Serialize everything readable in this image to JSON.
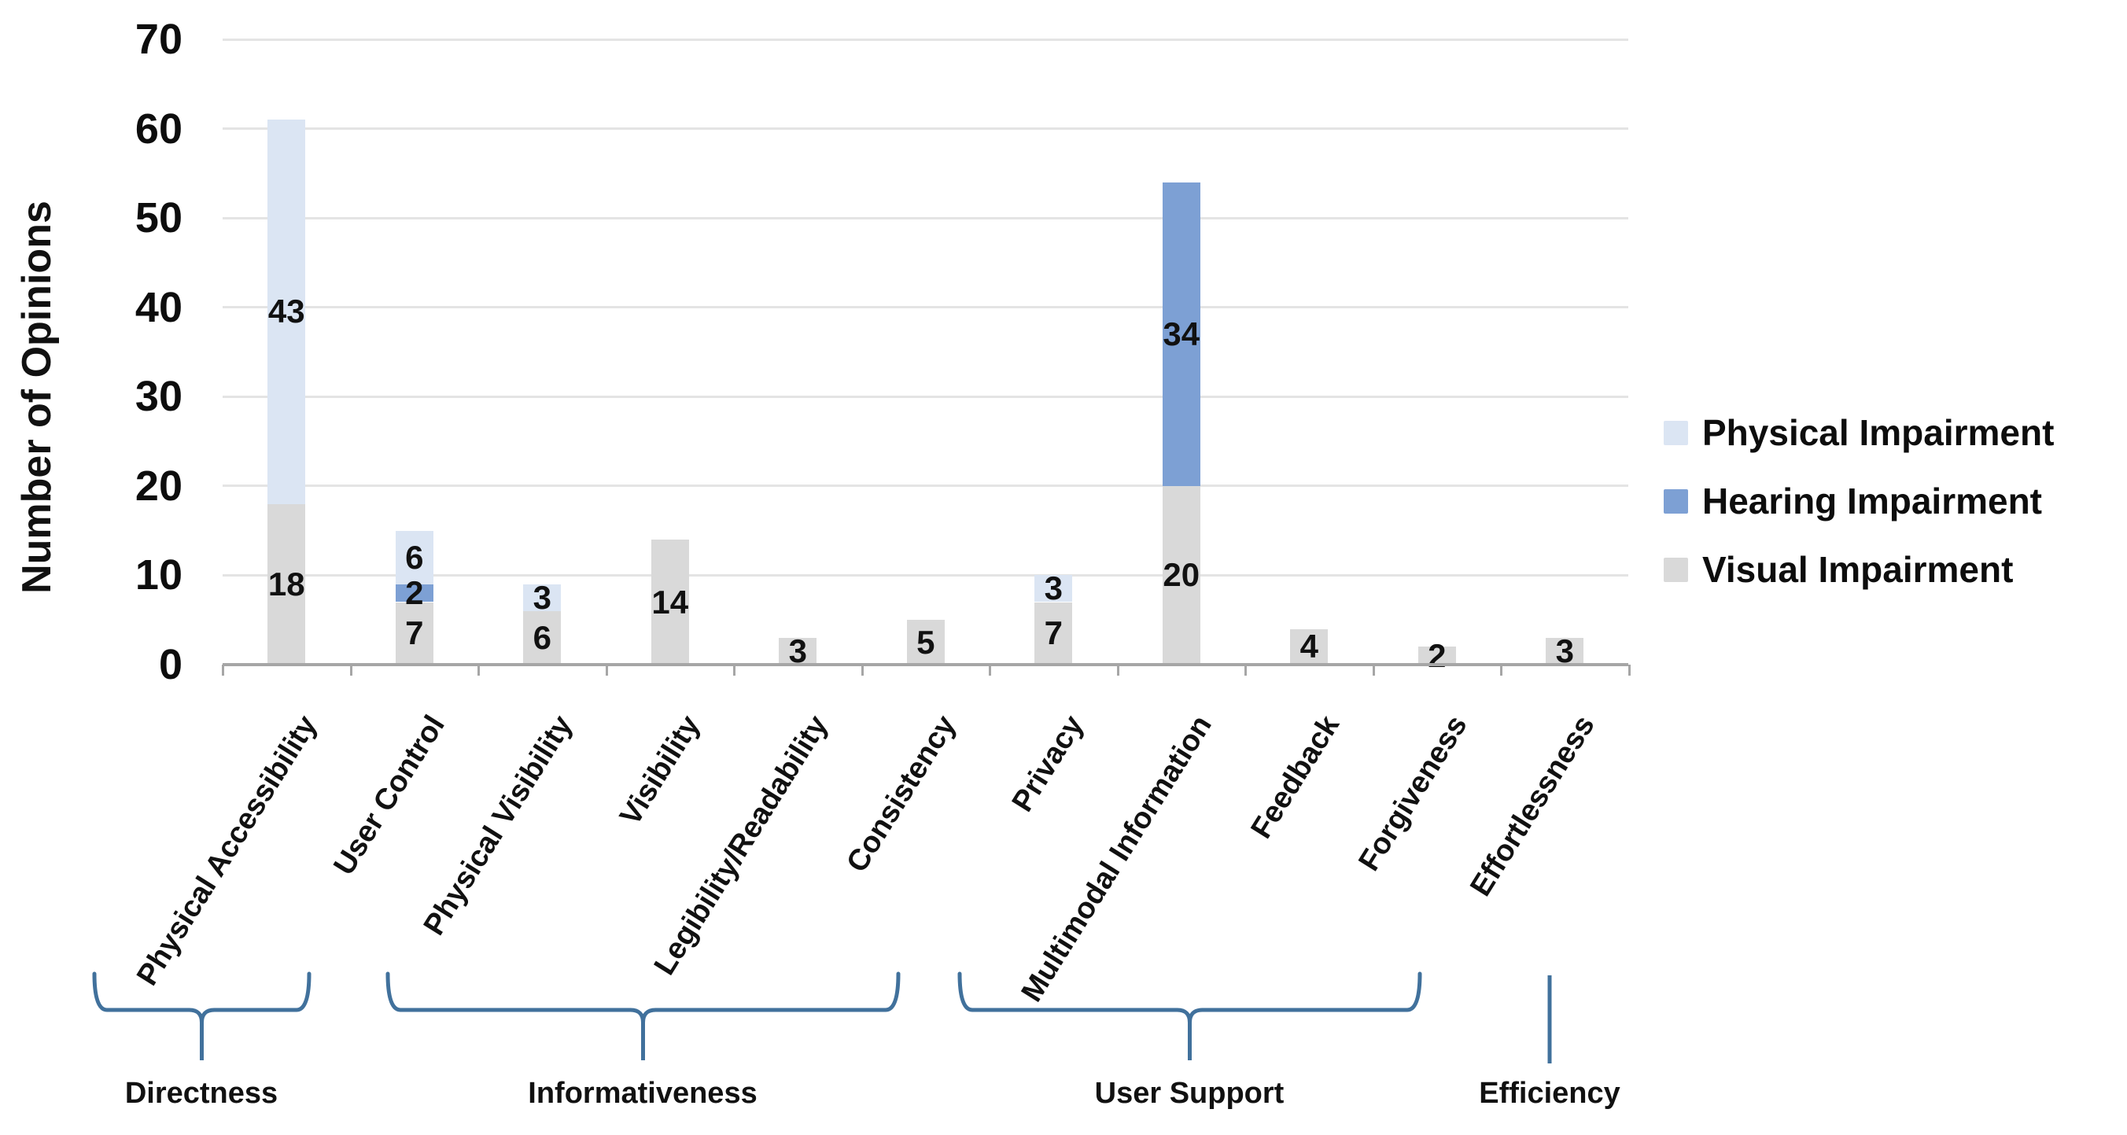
{
  "chart_data": {
    "type": "bar",
    "stacked": true,
    "ylabel": "Number of Opinions",
    "ylim": [
      0,
      70
    ],
    "yticks": [
      0,
      10,
      20,
      30,
      40,
      50,
      60,
      70
    ],
    "grid": true,
    "legend_position": "right",
    "categories": [
      "Physical Accessibility",
      "User Control",
      "Physical Visibility",
      "Visibility",
      "Legibility/Readability",
      "Consistency",
      "Privacy",
      "Multimodal Information",
      "Feedback",
      "Forgiveness",
      "Effortlessness"
    ],
    "series": [
      {
        "name": "Physical Impairment",
        "color": "#dbe5f3",
        "values": [
          43,
          6,
          3,
          0,
          0,
          0,
          3,
          0,
          0,
          0,
          0
        ]
      },
      {
        "name": "Hearing Impairment",
        "color": "#7da0d4",
        "values": [
          0,
          2,
          0,
          0,
          0,
          0,
          0,
          34,
          0,
          0,
          0
        ]
      },
      {
        "name": "Visual Impairment",
        "color": "#d9d9d9",
        "values": [
          18,
          7,
          6,
          14,
          3,
          5,
          7,
          20,
          4,
          2,
          3
        ]
      }
    ],
    "stack_order_bottom_to_top": [
      "Visual Impairment",
      "Hearing Impairment",
      "Physical Impairment"
    ],
    "groups": [
      {
        "label": "Directness",
        "categories": [
          "Physical Accessibility"
        ]
      },
      {
        "label": "Informativeness",
        "categories": [
          "User Control",
          "Physical Visibility",
          "Visibility",
          "Legibility/Readability",
          "Consistency"
        ]
      },
      {
        "label": "User Support",
        "categories": [
          "Privacy",
          "Multimodal Information",
          "Feedback",
          "Forgiveness"
        ]
      },
      {
        "label": "Efficiency",
        "categories": [
          "Effortlessness"
        ]
      }
    ],
    "bracket_color": "#41719c"
  }
}
